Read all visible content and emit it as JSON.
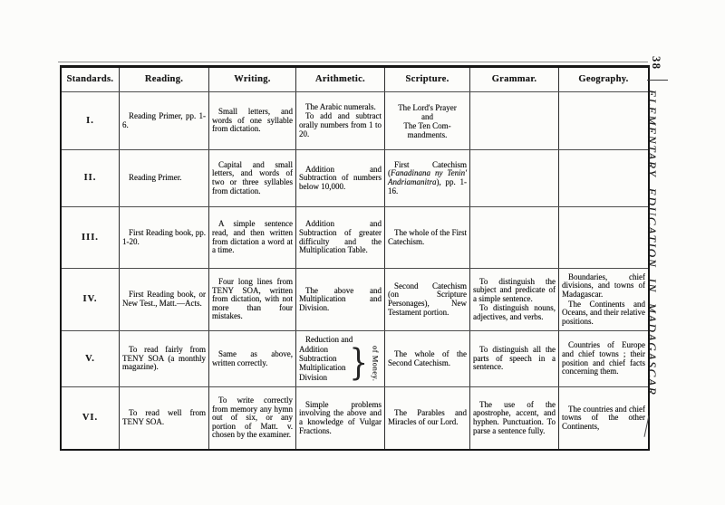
{
  "page": {
    "number": "38",
    "running_head": "ELEMENTARY EDUCATION IN MADAGASCAR."
  },
  "table": {
    "headers": [
      "Standards.",
      "Reading.",
      "Writing.",
      "Arithmetic.",
      "Scripture.",
      "Grammar.",
      "Geography."
    ],
    "rows": [
      {
        "standard": "I.",
        "reading": "Reading Primer, pp. 1-6.",
        "writing": "Small letters, and words of one syllable from dictation.",
        "arithmetic": "The Arabic numerals.\nTo add and subtract orally numbers from 1 to 20.",
        "scripture": {
          "type": "lines",
          "lines": [
            "The Lord's Prayer",
            "and",
            "The Ten Com-",
            "mandments."
          ]
        },
        "grammar": "",
        "geography": ""
      },
      {
        "standard": "II.",
        "reading": "Reading Primer.",
        "writing": "Capital and small letters, and words of two or three syllables from dictation.",
        "arithmetic": "Addition and Subtraction of numbers below 10,000.",
        "scripture": "First Catechism (*Fanadinana ny Tenin' Andriamanitra*), pp. 1-16.",
        "grammar": "",
        "geography": ""
      },
      {
        "standard": "III.",
        "reading": "First Reading book, pp. 1-20.",
        "writing": "A simple sentence read, and then written from dictation a word at a time.",
        "arithmetic": "Addition and Subtraction of greater difficulty and the Multiplication Table.",
        "scripture": "The whole of the First Catechism.",
        "grammar": "",
        "geography": ""
      },
      {
        "standard": "IV.",
        "reading": "First Reading book, or New Test., Matt.—Acts.",
        "writing": "Four long lines from TENY SOA, written from dictation, with not more than four mistakes.",
        "arithmetic": "The above and Multiplication and Division.",
        "scripture": "Second Catechism (on Scripture Personages), New Testament portion.",
        "grammar": "To distinguish the subject and predicate of a simple sentence.\nTo distinguish nouns, adjectives, and verbs.",
        "geography": "Boundaries, chief divisions, and towns of Madagascar.\nThe Continents and Oceans, and their relative positions."
      },
      {
        "standard": "V.",
        "reading": "To read fairly from TENY SOA (a monthly magazine).",
        "writing": "Same as above, written correctly.",
        "arithmetic": {
          "type": "brace",
          "intro": "Reduction and",
          "items": [
            "Addition",
            "Subtraction",
            "Multiplication",
            "Division"
          ],
          "brace_label": "of Money."
        },
        "scripture": "The whole of the Second Catechism.",
        "grammar": "To distinguish all the parts of speech in a sentence.",
        "geography": "Countries of Europe and chief towns ; their position and chief facts concerning them."
      },
      {
        "standard": "VI.",
        "reading": "To read well from TENY SOA.",
        "writing": "To write correctly from memory any hymn out of six, or any portion of Matt. v. chosen by the examiner.",
        "arithmetic": "Simple problems involving the above and a knowledge of Vulgar Fractions.",
        "scripture": "The Parables and Miracles of our Lord.",
        "grammar": "The use of the apostrophe, accent, and hyphen. Punctuation. To parse a sentence fully.",
        "geography": "The countries and chief towns of the other Continents,"
      }
    ]
  }
}
